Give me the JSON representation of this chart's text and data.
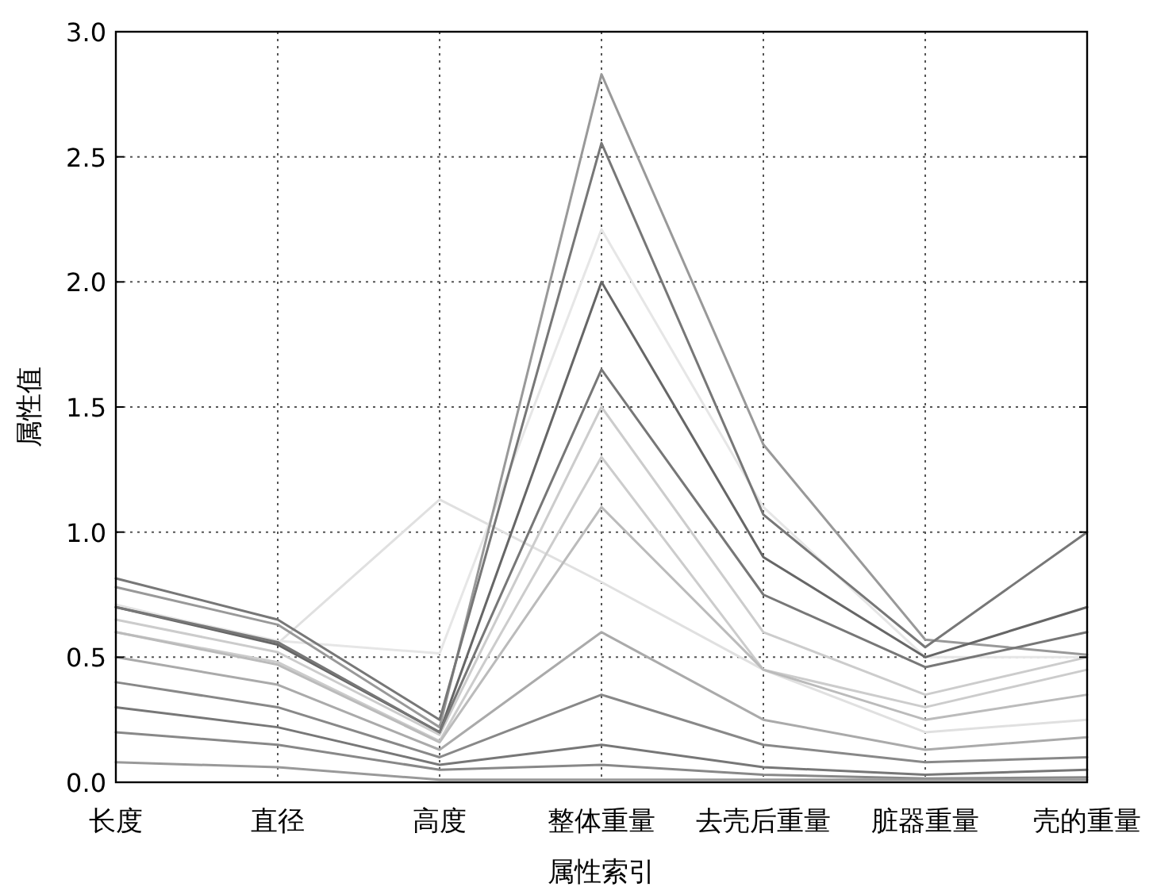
{
  "chart_data": {
    "type": "line",
    "xlabel": "属性索引",
    "ylabel": "属性值",
    "categories": [
      "长度",
      "直径",
      "高度",
      "整体重量",
      "去壳后重量",
      "脏器重量",
      "壳的重量"
    ],
    "ylim": [
      0,
      3
    ],
    "yticks": [
      {
        "value": 0,
        "label": "0.0"
      },
      {
        "value": 0.5,
        "label": "0.5"
      },
      {
        "value": 1,
        "label": "1.0"
      },
      {
        "value": 1.5,
        "label": "1.5"
      },
      {
        "value": 2,
        "label": "2.0"
      },
      {
        "value": 2.5,
        "label": "2.5"
      },
      {
        "value": 3,
        "label": "3.0"
      }
    ],
    "grid": true,
    "line_style": "solid",
    "series": [
      {
        "color": "#e0e0e0",
        "values": [
          0.71,
          0.555,
          1.13,
          0.8,
          0.45,
          0.2,
          0.25
        ]
      },
      {
        "color": "#e6e6e6",
        "values": [
          0.705,
          0.565,
          0.515,
          2.21,
          1.1,
          0.5,
          0.5
        ]
      },
      {
        "color": "#cccccc",
        "values": [
          0.65,
          0.52,
          0.19,
          1.5,
          0.6,
          0.35,
          0.5
        ]
      },
      {
        "color": "#cccccc",
        "values": [
          0.6,
          0.48,
          0.165,
          1.3,
          0.45,
          0.3,
          0.45
        ]
      },
      {
        "color": "#bbbbbb",
        "values": [
          0.6,
          0.47,
          0.16,
          1.1,
          0.45,
          0.25,
          0.35
        ]
      },
      {
        "color": "#aaaaaa",
        "values": [
          0.5,
          0.39,
          0.13,
          0.6,
          0.25,
          0.13,
          0.18
        ]
      },
      {
        "color": "#888888",
        "values": [
          0.4,
          0.3,
          0.1,
          0.35,
          0.15,
          0.08,
          0.1
        ]
      },
      {
        "color": "#777777",
        "values": [
          0.3,
          0.22,
          0.07,
          0.15,
          0.06,
          0.03,
          0.05
        ]
      },
      {
        "color": "#888888",
        "values": [
          0.2,
          0.15,
          0.05,
          0.07,
          0.03,
          0.015,
          0.02
        ]
      },
      {
        "color": "#999999",
        "values": [
          0.08,
          0.06,
          0.01,
          0.01,
          0.01,
          0.01,
          0.01
        ]
      },
      {
        "color": "#999999",
        "values": [
          0.78,
          0.63,
          0.22,
          2.83,
          1.35,
          0.57,
          0.51
        ]
      },
      {
        "color": "#777777",
        "values": [
          0.815,
          0.65,
          0.25,
          2.555,
          1.07,
          0.54,
          1.0
        ]
      },
      {
        "color": "#666666",
        "values": [
          0.7,
          0.55,
          0.2,
          2.0,
          0.9,
          0.5,
          0.7
        ]
      },
      {
        "color": "#777777",
        "values": [
          0.7,
          0.56,
          0.2,
          1.65,
          0.75,
          0.46,
          0.6
        ]
      }
    ]
  }
}
